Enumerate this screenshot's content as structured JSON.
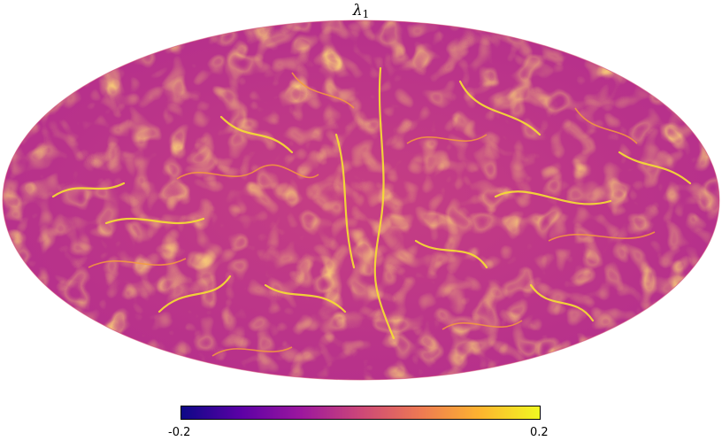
{
  "figure": {
    "title_symbol": "λ",
    "title_subscript": "1",
    "projection": "mollweide",
    "background": "#ffffff"
  },
  "colorbar": {
    "min_label": "-0.2",
    "max_label": "0.2",
    "colormap": "plasma",
    "stops": [
      "#0d0887",
      "#5c01a6",
      "#9c179e",
      "#cc4778",
      "#ed7953",
      "#fdb42f",
      "#f0f921"
    ]
  }
}
